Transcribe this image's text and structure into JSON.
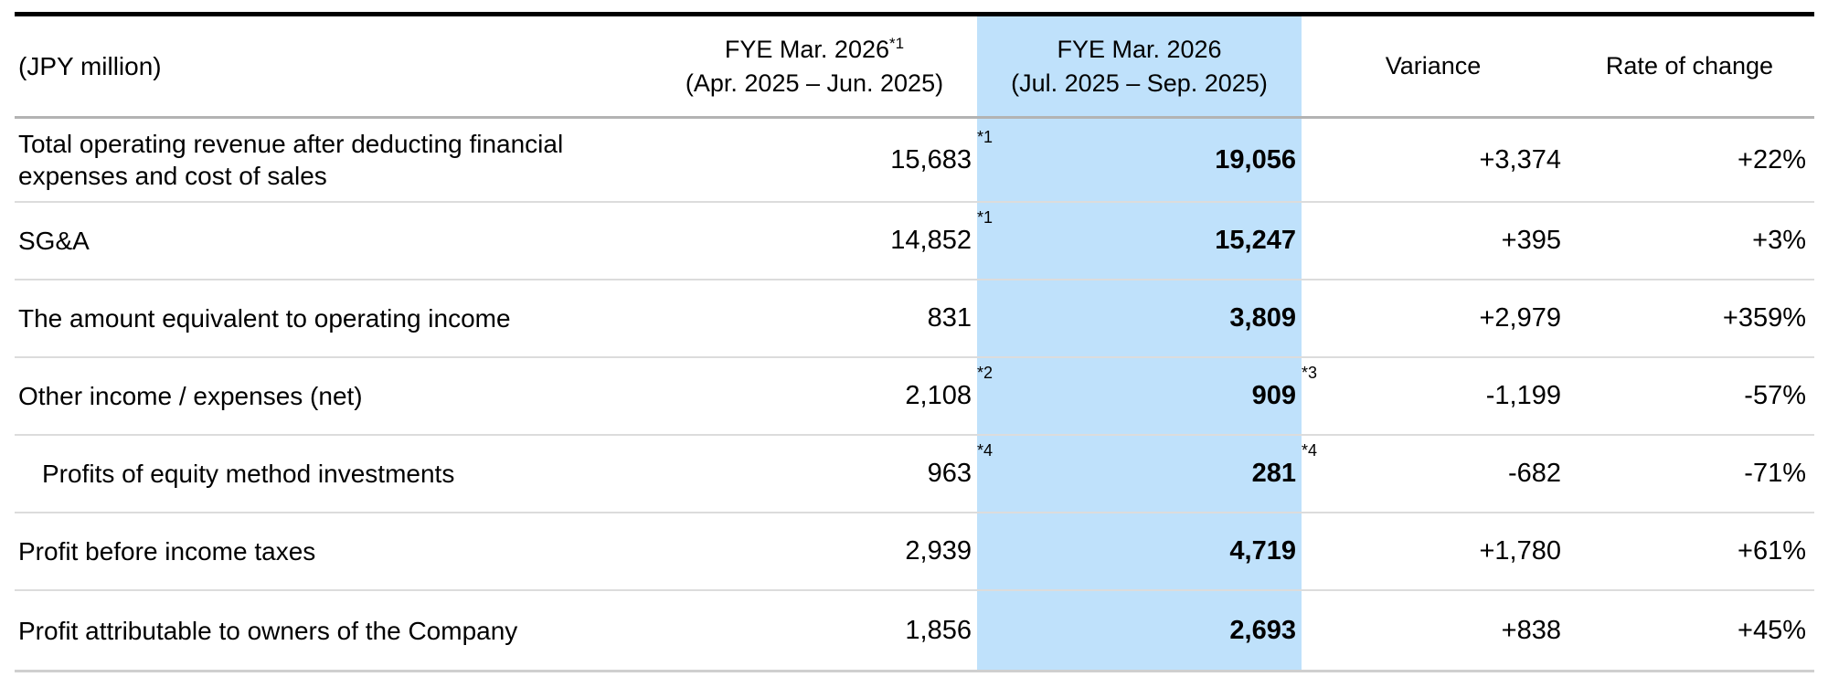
{
  "unit_label": "(JPY million)",
  "highlight_color": "#bfe1fb",
  "columns": {
    "q1": {
      "line1": "FYE Mar. 2026",
      "sup": "*1",
      "line2": "(Apr. 2025 – Jun. 2025)"
    },
    "q2": {
      "line1": "FYE Mar. 2026",
      "line2": "(Jul. 2025 – Sep. 2025)"
    },
    "variance": "Variance",
    "rate": "Rate of change"
  },
  "rows": [
    {
      "label": "Total operating revenue after deducting financial expenses and cost of sales",
      "q1": "15,683",
      "q1_sup": "*1",
      "q2": "19,056",
      "q2_sup": "",
      "variance": "+3,374",
      "rate": "+22%"
    },
    {
      "label": "SG&A",
      "q1": "14,852",
      "q1_sup": "*1",
      "q2": "15,247",
      "q2_sup": "",
      "variance": "+395",
      "rate": "+3%"
    },
    {
      "label": "The amount equivalent to operating income",
      "q1": "831",
      "q1_sup": "",
      "q2": "3,809",
      "q2_sup": "",
      "variance": "+2,979",
      "rate": "+359%"
    },
    {
      "label": "Other income / expenses (net)",
      "q1": "2,108",
      "q1_sup": "*2",
      "q2": "909",
      "q2_sup": "*3",
      "variance": "-1,199",
      "rate": "-57%"
    },
    {
      "label": "Profits of equity method investments",
      "q1": "963",
      "q1_sup": "*4",
      "q2": "281",
      "q2_sup": "*4",
      "variance": "-682",
      "rate": "-71%"
    },
    {
      "label": "Profit before income taxes",
      "q1": "2,939",
      "q1_sup": "",
      "q2": "4,719",
      "q2_sup": "",
      "variance": "+1,780",
      "rate": "+61%"
    },
    {
      "label": "Profit attributable to owners of the Company",
      "q1": "1,856",
      "q1_sup": "",
      "q2": "2,693",
      "q2_sup": "",
      "variance": "+838",
      "rate": "+45%"
    }
  ]
}
